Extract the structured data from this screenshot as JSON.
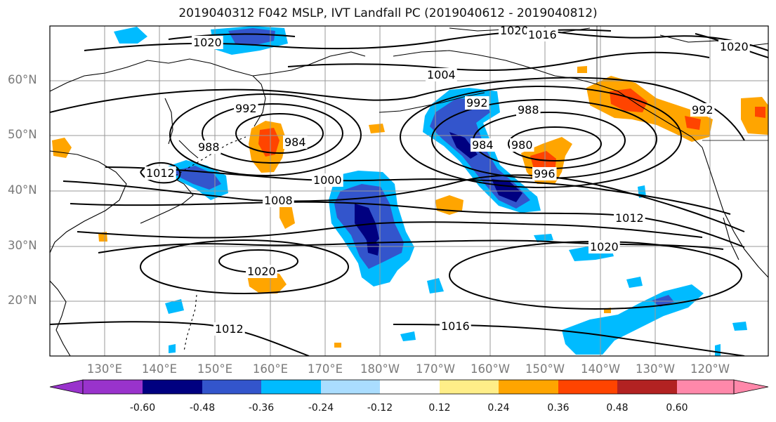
{
  "title": "2019040312 F042 MSLP, IVT Landfall PC (2019040612 - 2019040812)",
  "map": {
    "lat_labels": [
      "60°N",
      "50°N",
      "40°N",
      "30°N",
      "20°N"
    ],
    "lon_labels": [
      "130°E",
      "140°E",
      "150°E",
      "160°E",
      "170°E",
      "180°W",
      "170°W",
      "160°W",
      "150°W",
      "140°W",
      "130°W",
      "120°W"
    ],
    "contour_labels": [
      "1020",
      "1020",
      "1016",
      "1020",
      "1004",
      "992",
      "992",
      "988",
      "988",
      "984",
      "984",
      "980",
      "996",
      "992",
      "1000",
      "1008",
      "1012",
      "1020",
      "1020",
      "1012",
      "1016",
      "1012"
    ]
  },
  "colorbar": {
    "labels": [
      "-0.60",
      "-0.48",
      "-0.36",
      "-0.24",
      "-0.12",
      "0.12",
      "0.24",
      "0.36",
      "0.48",
      "0.60"
    ],
    "colors": [
      "#9933cc",
      "#000080",
      "#3355cc",
      "#00bbff",
      "#aaddff",
      "#ffffff",
      "#ffee88",
      "#ffa500",
      "#ff4400",
      "#b22222",
      "#ff88aa"
    ]
  },
  "palette": {
    "very_neg": "#000080",
    "neg": "#3355cc",
    "mid_neg": "#00bbff",
    "light_neg": "#aaddff",
    "pos": "#ffa500",
    "strong_pos": "#ff4400"
  }
}
